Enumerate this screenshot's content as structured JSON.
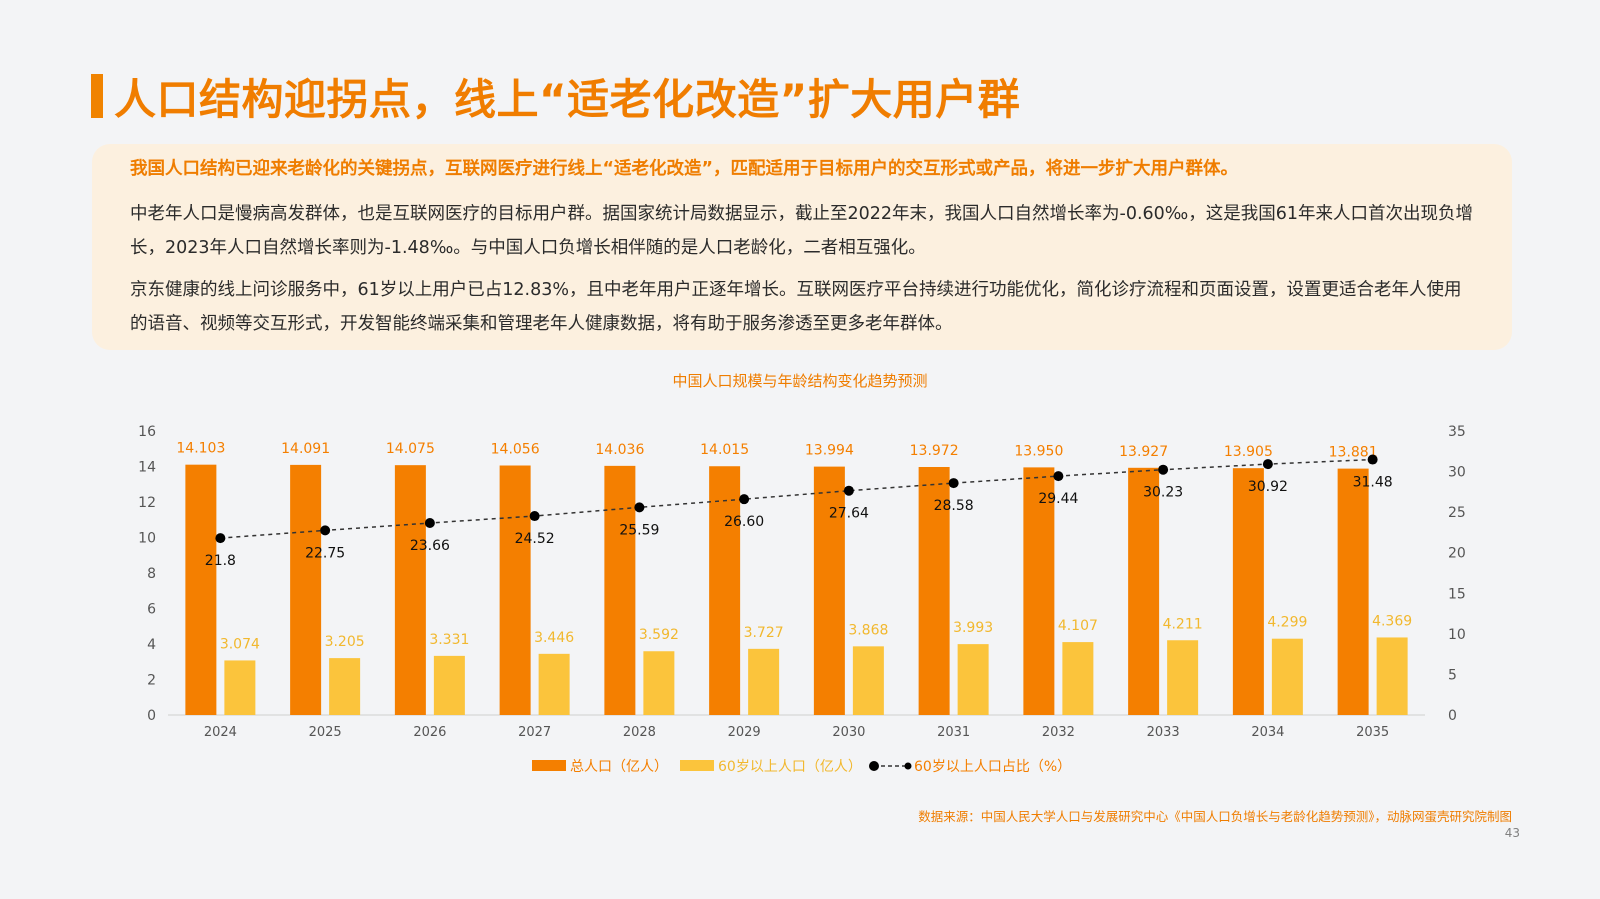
{
  "header": {
    "title": "人口结构迎拐点，线上“适老化改造”扩大用户群"
  },
  "summary": {
    "lead": "我国人口结构已迎来老龄化的关键拐点，互联网医疗进行线上“适老化改造”，匹配适用于目标用户的交互形式或产品，将进一步扩大用户群体。",
    "paragraph1": "中老年人口是慢病高发群体，也是互联网医疗的目标用户群。据国家统计局数据显示，截止至2022年末，我国人口自然增长率为-0.60‰，这是我国61年来人口首次出现负增长，2023年人口自然增长率则为-1.48‰。与中国人口负增长相伴随的是人口老龄化，二者相互强化。",
    "paragraph2": "京东健康的线上问诊服务中，61岁以上用户已占12.83%，且中老年用户正逐年增长。互联网医疗平台持续进行功能优化，简化诊疗流程和页面设置，设置更适合老年人使用的语音、视频等交互形式，开发智能终端采集和管理老年人健康数据，将有助于服务渗透至更多老年群体。"
  },
  "chart_data": {
    "type": "bar",
    "title": "中国人口规模与年龄结构变化趋势预测",
    "categories": [
      "2024",
      "2025",
      "2026",
      "2027",
      "2028",
      "2029",
      "2030",
      "2031",
      "2032",
      "2033",
      "2034",
      "2035"
    ],
    "series": [
      {
        "name": "总人口（亿人）",
        "kind": "bar",
        "axis": "left",
        "color": "#f47f00",
        "values": [
          14.103,
          14.091,
          14.075,
          14.056,
          14.036,
          14.015,
          13.994,
          13.972,
          13.95,
          13.927,
          13.905,
          13.881
        ],
        "labels": [
          "14.103",
          "14.091",
          "14.075",
          "14.056",
          "14.036",
          "14.015",
          "13.994",
          "13.972",
          "13.950",
          "13.927",
          "13.905",
          "13.881"
        ]
      },
      {
        "name": "60岁以上人口（亿人）",
        "kind": "bar",
        "axis": "left",
        "color": "#fbc43c",
        "values": [
          3.074,
          3.205,
          3.331,
          3.446,
          3.592,
          3.727,
          3.868,
          3.993,
          4.107,
          4.211,
          4.299,
          4.369
        ],
        "labels": [
          "3.074",
          "3.205",
          "3.331",
          "3.446",
          "3.592",
          "3.727",
          "3.868",
          "3.993",
          "4.107",
          "4.211",
          "4.299",
          "4.369"
        ]
      },
      {
        "name": "60岁以上人口占比（%）",
        "kind": "line",
        "axis": "right",
        "color": "#000000",
        "values": [
          21.8,
          22.75,
          23.66,
          24.52,
          25.59,
          26.6,
          27.64,
          28.58,
          29.44,
          30.23,
          30.92,
          31.48
        ],
        "labels": [
          "21.8",
          "22.75",
          "23.66",
          "24.52",
          "25.59",
          "26.60",
          "27.64",
          "28.58",
          "29.44",
          "30.23",
          "30.92",
          "31.48"
        ]
      }
    ],
    "ylim_left": [
      0,
      16
    ],
    "yticks_left": [
      "0",
      "2",
      "4",
      "6",
      "8",
      "10",
      "12",
      "14",
      "16"
    ],
    "ylim_right": [
      0,
      35
    ],
    "yticks_right": [
      "0",
      "5",
      "10",
      "15",
      "20",
      "25",
      "30",
      "35"
    ],
    "legend_position": "bottom",
    "grid": false
  },
  "footer": {
    "source": "数据来源：中国人民大学人口与发展研究中心《中国人口负增长与老龄化趋势预测》，动脉网蛋壳研究院制图",
    "page_number": "43"
  }
}
